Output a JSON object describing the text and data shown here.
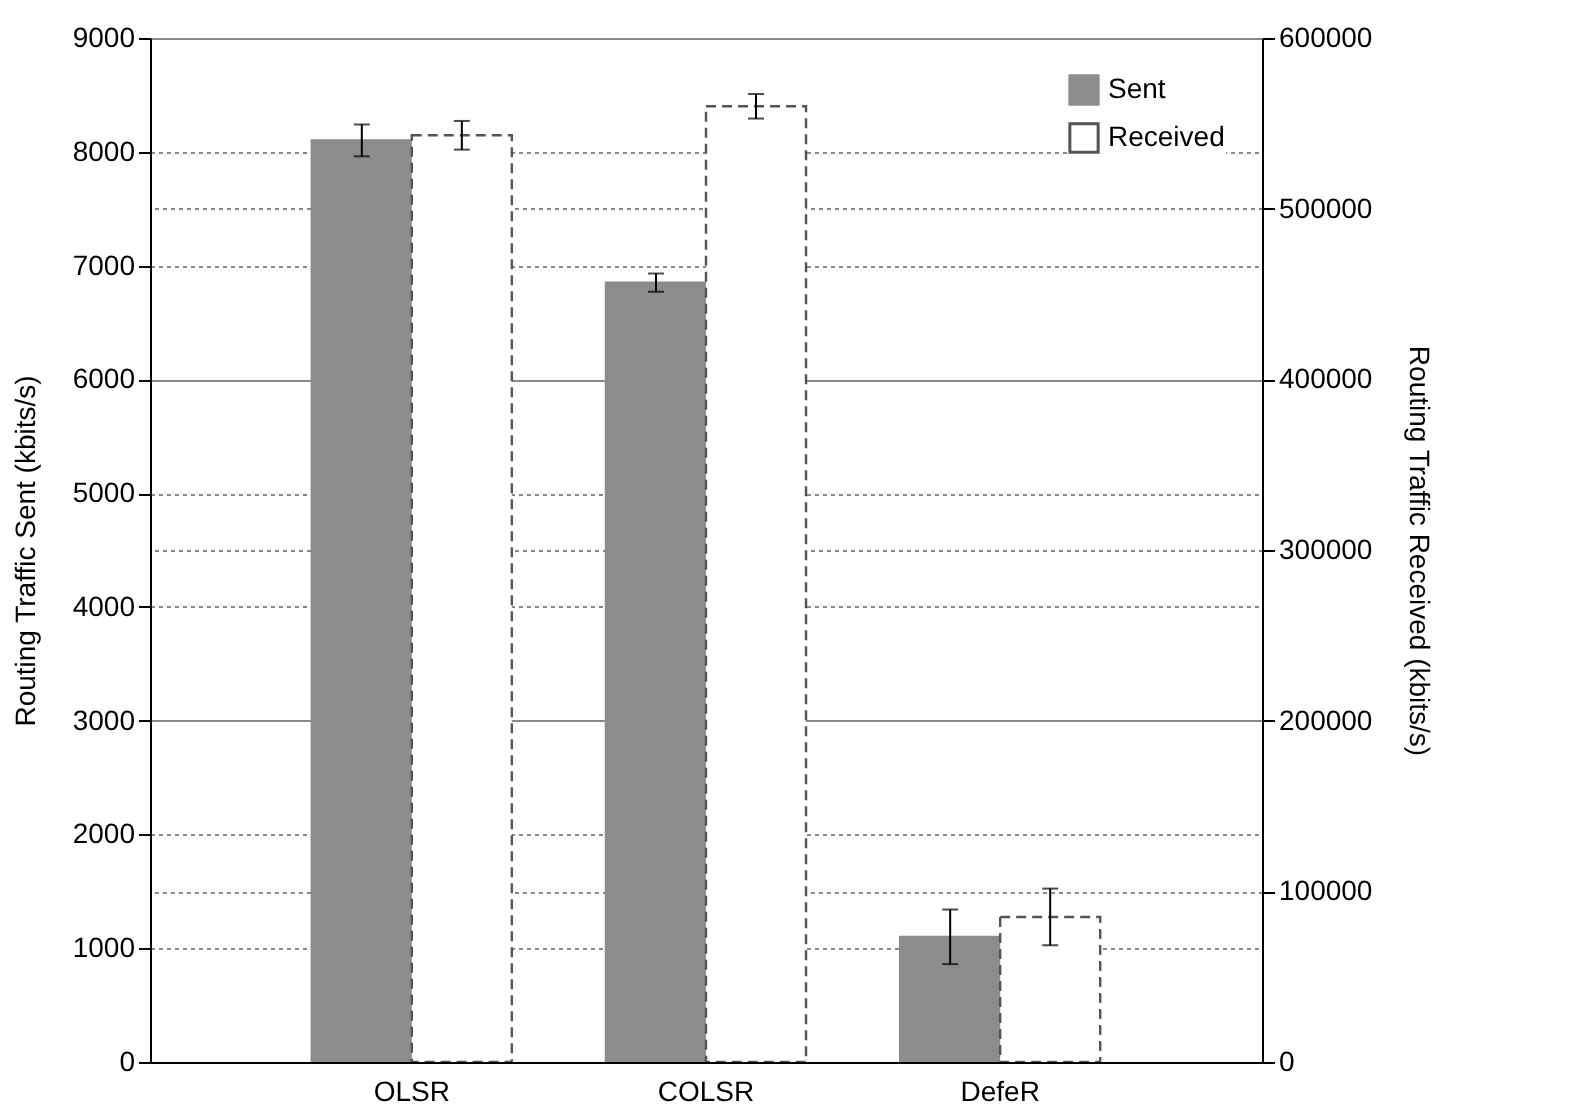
{
  "chart_data": {
    "type": "bar",
    "xlabel": null,
    "ylabel": "Routing Traffic Sent (kbits/s)",
    "y2label": "Routing Traffic Received (kbits/s)",
    "categories": [
      "OLSR",
      "COLSR",
      "DefeR"
    ],
    "series": [
      {
        "name": "Sent",
        "color": "#8c8c8c",
        "values": [
          8100,
          6850,
          1100
        ],
        "errors": [
          140,
          80,
          240
        ]
      },
      {
        "name": "Received",
        "color": "#555555",
        "axis": "y2",
        "line_style": "dashed",
        "values": [
          543000,
          560000,
          85000
        ],
        "errors": [
          8400,
          7200,
          16600
        ]
      }
    ],
    "ylim": [
      0,
      9000
    ],
    "yticks": [
      0,
      1000,
      2000,
      3000,
      4000,
      5000,
      6000,
      7000,
      8000,
      9000
    ],
    "y2lim": [
      0,
      600000
    ],
    "y2ticks": [
      0,
      100000,
      200000,
      300000,
      400000,
      500000,
      600000
    ],
    "grid": "y",
    "legend": "top right"
  }
}
